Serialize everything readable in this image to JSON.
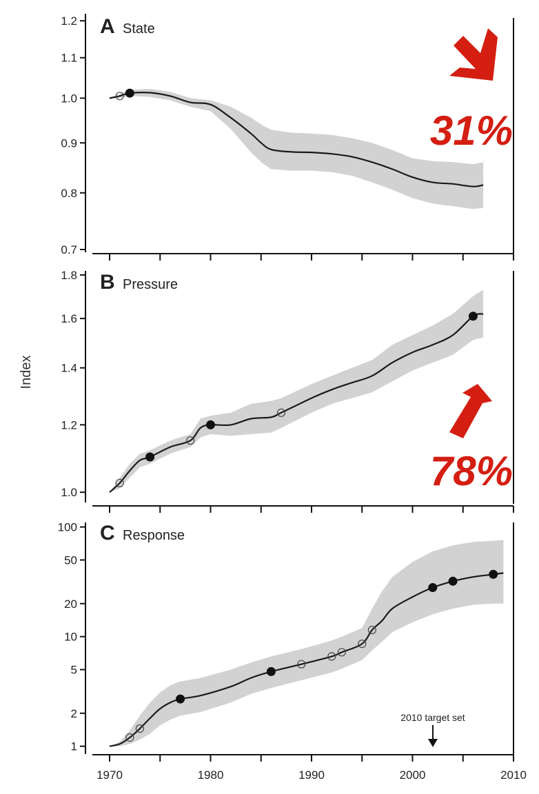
{
  "chart_data": [
    {
      "panel_letter": "A",
      "type": "line",
      "title": "State",
      "ylabel": "Index",
      "scale": "log",
      "ylim": [
        0.7,
        1.22
      ],
      "xlim": [
        1970,
        2010
      ],
      "yticks": [
        0.7,
        0.8,
        0.9,
        1.0,
        1.1,
        1.2
      ],
      "ytick_labels": [
        "0.7",
        "0.8",
        "0.9",
        "1.0",
        "1.1",
        "1.2"
      ],
      "xticks": [
        1970,
        1980,
        1990,
        2000,
        2010
      ],
      "series": [
        {
          "x": [
            1970,
            1971,
            1972,
            1974,
            1976,
            1978,
            1980,
            1982,
            1984,
            1985,
            1986,
            1988,
            1990,
            1992,
            1994,
            1996,
            1998,
            2000,
            2002,
            2004,
            2006,
            2007
          ],
          "y": [
            1.0,
            1.005,
            1.012,
            1.013,
            1.005,
            0.99,
            0.985,
            0.955,
            0.92,
            0.9,
            0.886,
            0.881,
            0.88,
            0.877,
            0.871,
            0.86,
            0.846,
            0.83,
            0.82,
            0.817,
            0.812,
            0.815
          ],
          "upper": [
            1.0,
            1.01,
            1.02,
            1.022,
            1.015,
            1.0,
            0.995,
            0.98,
            0.955,
            0.94,
            0.928,
            0.922,
            0.92,
            0.917,
            0.91,
            0.9,
            0.885,
            0.868,
            0.862,
            0.86,
            0.856,
            0.86
          ],
          "lower": [
            1.0,
            1.0,
            1.005,
            1.003,
            0.995,
            0.98,
            0.97,
            0.93,
            0.88,
            0.86,
            0.846,
            0.843,
            0.843,
            0.84,
            0.833,
            0.82,
            0.806,
            0.79,
            0.78,
            0.775,
            0.77,
            0.772
          ]
        }
      ],
      "markers": [
        {
          "x": 1971,
          "y": 1.005,
          "filled": false
        },
        {
          "x": 1972,
          "y": 1.012,
          "filled": true
        }
      ]
    },
    {
      "panel_letter": "B",
      "type": "line",
      "title": "Pressure",
      "scale": "log",
      "ylim": [
        0.98,
        1.82
      ],
      "xlim": [
        1970,
        2010
      ],
      "yticks": [
        1.0,
        1.2,
        1.4,
        1.6,
        1.8
      ],
      "ytick_labels": [
        "1.0",
        "1.2",
        "1.4",
        "1.6",
        "1.8"
      ],
      "xticks": [
        1970,
        1980,
        1990,
        2000,
        2010
      ],
      "series": [
        {
          "x": [
            1970,
            1971,
            1972,
            1973,
            1974,
            1976,
            1978,
            1979,
            1980,
            1982,
            1984,
            1986,
            1987,
            1990,
            1992,
            1994,
            1996,
            1998,
            2000,
            2002,
            2004,
            2006,
            2007
          ],
          "y": [
            1.0,
            1.025,
            1.06,
            1.09,
            1.1,
            1.13,
            1.15,
            1.19,
            1.2,
            1.2,
            1.22,
            1.225,
            1.24,
            1.29,
            1.32,
            1.345,
            1.37,
            1.42,
            1.46,
            1.49,
            1.53,
            1.61,
            1.62
          ],
          "upper": [
            1.0,
            1.04,
            1.08,
            1.11,
            1.12,
            1.15,
            1.17,
            1.22,
            1.23,
            1.24,
            1.27,
            1.28,
            1.29,
            1.34,
            1.37,
            1.4,
            1.43,
            1.49,
            1.53,
            1.57,
            1.62,
            1.7,
            1.73
          ],
          "lower": [
            1.0,
            1.01,
            1.04,
            1.07,
            1.08,
            1.11,
            1.13,
            1.16,
            1.17,
            1.165,
            1.17,
            1.175,
            1.19,
            1.24,
            1.27,
            1.29,
            1.31,
            1.35,
            1.39,
            1.42,
            1.45,
            1.51,
            1.52
          ]
        }
      ],
      "markers": [
        {
          "x": 1971,
          "y": 1.025,
          "filled": false
        },
        {
          "x": 1974,
          "y": 1.1,
          "filled": true
        },
        {
          "x": 1978,
          "y": 1.15,
          "filled": false
        },
        {
          "x": 1980,
          "y": 1.2,
          "filled": true
        },
        {
          "x": 1987,
          "y": 1.24,
          "filled": false
        },
        {
          "x": 2006,
          "y": 1.61,
          "filled": true
        }
      ]
    },
    {
      "panel_letter": "C",
      "type": "line",
      "title": "Response",
      "scale": "log",
      "ylim": [
        0.9,
        110
      ],
      "xlim": [
        1970,
        2010
      ],
      "yticks": [
        1,
        2,
        5,
        10,
        20,
        50,
        100
      ],
      "ytick_labels": [
        "1",
        "2",
        "5",
        "10",
        "20",
        "50",
        "100"
      ],
      "xticks": [
        1970,
        1980,
        1990,
        2000,
        2010
      ],
      "xtick_labels": [
        "1970",
        "1980",
        "1990",
        "2000",
        "2010"
      ],
      "series": [
        {
          "x": [
            1970,
            1971,
            1972,
            1973,
            1974,
            1975,
            1976,
            1977,
            1979,
            1982,
            1984,
            1986,
            1989,
            1992,
            1993,
            1995,
            1996,
            1997,
            1998,
            2000,
            2002,
            2004,
            2006,
            2008,
            2009
          ],
          "y": [
            1.0,
            1.05,
            1.2,
            1.45,
            1.8,
            2.2,
            2.5,
            2.7,
            2.9,
            3.5,
            4.2,
            4.8,
            5.6,
            6.6,
            7.2,
            8.6,
            11.5,
            14,
            18,
            23,
            28,
            32,
            35,
            37,
            38
          ],
          "upper": [
            1.0,
            1.1,
            1.4,
            1.9,
            2.5,
            3.1,
            3.6,
            3.9,
            4.2,
            5.0,
            5.8,
            6.6,
            7.7,
            9.2,
            10,
            12,
            18,
            26,
            35,
            48,
            60,
            68,
            73,
            75,
            76
          ],
          "lower": [
            1.0,
            1.0,
            1.05,
            1.15,
            1.3,
            1.55,
            1.75,
            1.9,
            2.05,
            2.5,
            3.0,
            3.4,
            4.0,
            4.7,
            5.1,
            6.1,
            7.5,
            9,
            11,
            13.5,
            16,
            18,
            19.5,
            20,
            20
          ]
        }
      ],
      "markers": [
        {
          "x": 1972,
          "y": 1.2,
          "filled": false
        },
        {
          "x": 1973,
          "y": 1.45,
          "filled": false
        },
        {
          "x": 1977,
          "y": 2.7,
          "filled": true
        },
        {
          "x": 1986,
          "y": 4.8,
          "filled": true
        },
        {
          "x": 1989,
          "y": 5.6,
          "filled": false
        },
        {
          "x": 1992,
          "y": 6.6,
          "filled": false
        },
        {
          "x": 1993,
          "y": 7.2,
          "filled": false
        },
        {
          "x": 1995,
          "y": 8.6,
          "filled": false
        },
        {
          "x": 1996,
          "y": 11.5,
          "filled": false
        },
        {
          "x": 2002,
          "y": 28,
          "filled": true
        },
        {
          "x": 2004,
          "y": 32,
          "filled": true
        },
        {
          "x": 2008,
          "y": 37,
          "filled": true
        }
      ],
      "annotation": {
        "text": "2010 target set",
        "x": 2002
      }
    }
  ],
  "annotations": [
    {
      "text": "31%",
      "direction": "down",
      "color": "#d41e12"
    },
    {
      "text": "78%",
      "direction": "up",
      "color": "#d41e12"
    }
  ]
}
